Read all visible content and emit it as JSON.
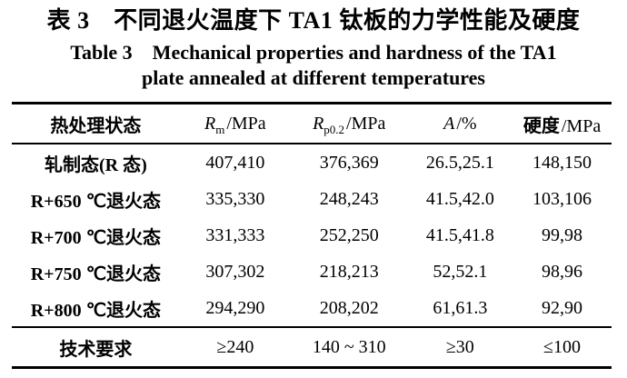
{
  "title": {
    "zh": "表 3　不同退火温度下 TA1 钛板的力学性能及硬度",
    "en_line1": "Table 3　Mechanical properties and hardness of the TA1",
    "en_line2": "plate annealed at different temperatures"
  },
  "table": {
    "headers": {
      "state": "热处理状态",
      "rm": {
        "symbol": "R",
        "sub": "m",
        "unit": "/MPa"
      },
      "rp02": {
        "symbol": "R",
        "sub": "p0.2",
        "unit": "/MPa"
      },
      "a": {
        "symbol": "A",
        "sub": "",
        "unit": "/%"
      },
      "hardness": {
        "label": "硬度",
        "unit": "/MPa"
      }
    },
    "rows": [
      {
        "state": "轧制态(R 态)",
        "rm": "407,410",
        "rp02": "376,369",
        "a": "26.5,25.1",
        "hardness": "148,150"
      },
      {
        "state": "R+650 ℃退火态",
        "rm": "335,330",
        "rp02": "248,243",
        "a": "41.5,42.0",
        "hardness": "103,106"
      },
      {
        "state": "R+700 ℃退火态",
        "rm": "331,333",
        "rp02": "252,250",
        "a": "41.5,41.8",
        "hardness": "99,98"
      },
      {
        "state": "R+750 ℃退火态",
        "rm": "307,302",
        "rp02": "218,213",
        "a": "52,52.1",
        "hardness": "98,96"
      },
      {
        "state": "R+800 ℃退火态",
        "rm": "294,290",
        "rp02": "208,202",
        "a": "61,61.3",
        "hardness": "92,90"
      }
    ],
    "footer": {
      "state": "技术要求",
      "rm": "≥240",
      "rp02": "140 ~ 310",
      "a": "≥30",
      "hardness": "≤100"
    }
  },
  "colors": {
    "text": "#000000",
    "background": "#ffffff",
    "rule": "#000000"
  }
}
